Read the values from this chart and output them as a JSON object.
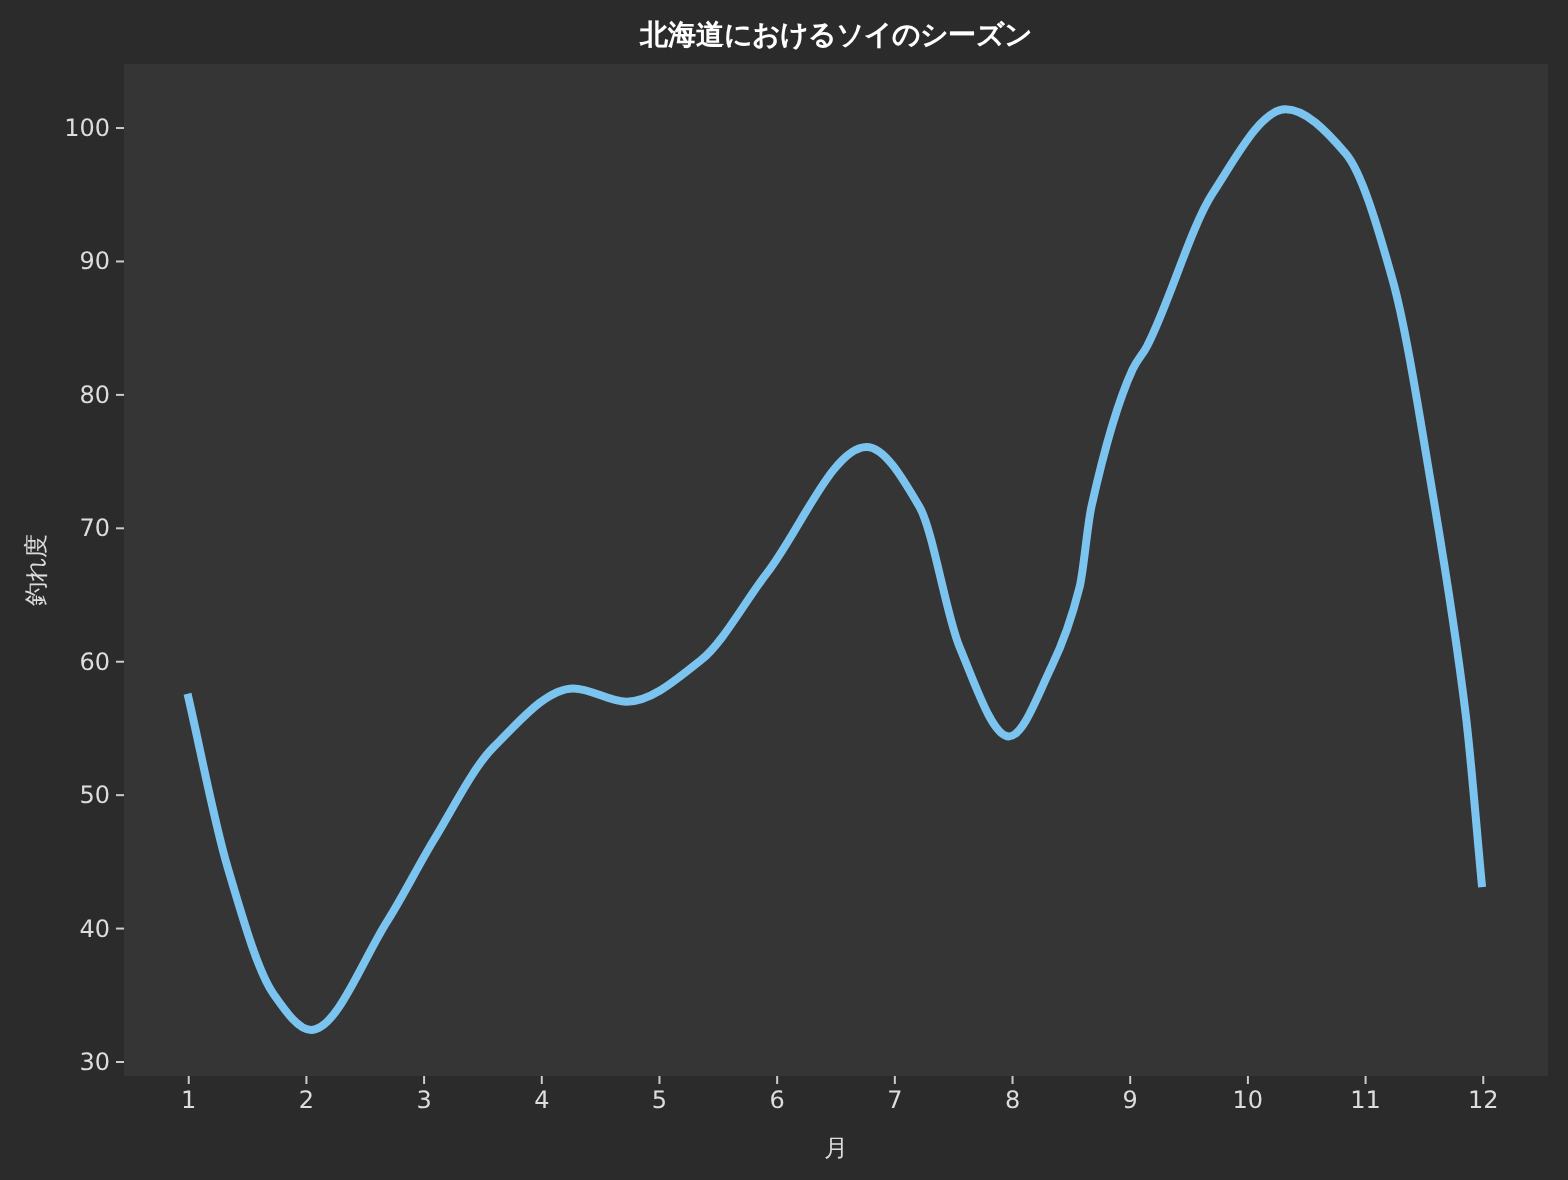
{
  "chart_data": {
    "type": "line",
    "title": "北海道におけるソイのシーズン",
    "xlabel": "月",
    "ylabel": "釣れ度",
    "xlim": [
      0.45,
      12.55
    ],
    "xticks": [
      1,
      2,
      3,
      4,
      5,
      6,
      7,
      8,
      9,
      10,
      11,
      12
    ],
    "ylim": [
      28.95,
      104.8
    ],
    "yticks": [
      30,
      40,
      50,
      60,
      70,
      80,
      90,
      100
    ],
    "grid": false,
    "marker": "none",
    "line_style": "solid",
    "series": [
      {
        "color": "#7cc4f0",
        "x": [
          0.99,
          1.33,
          1.72,
          2.04,
          2.69,
          3.08,
          3.59,
          4.27,
          4.72,
          5.35,
          5.91,
          6.76,
          7.21,
          7.55,
          7.97,
          8.33,
          8.57,
          8.67,
          9.02,
          9.14,
          9.7,
          10.32,
          10.83,
          11.23,
          11.57,
          11.85,
          11.99
        ],
        "values": [
          57.6,
          44.6,
          35.1,
          32.4,
          40.6,
          46.6,
          53.6,
          58.0,
          57.0,
          60.1,
          66.6,
          76.1,
          71.6,
          61.1,
          54.4,
          59.6,
          65.6,
          71.6,
          81.9,
          83.6,
          95.1,
          101.4,
          98.1,
          88.6,
          72.6,
          56.1,
          43.1
        ]
      }
    ]
  }
}
